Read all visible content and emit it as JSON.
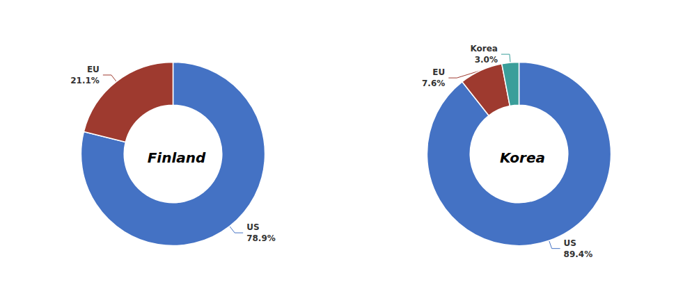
{
  "chart_data": [
    {
      "type": "pie",
      "title": "Finland",
      "categories": [
        "US",
        "EU"
      ],
      "values": [
        78.9,
        21.1
      ],
      "value_labels": [
        "78.9%",
        "21.1%"
      ],
      "colors": [
        "#4472C4",
        "#9E3A2F"
      ],
      "data_labels": true
    },
    {
      "type": "pie",
      "title": "Korea",
      "categories": [
        "US",
        "EU",
        "Korea"
      ],
      "values": [
        89.4,
        7.6,
        3.0
      ],
      "value_labels": [
        "89.4%",
        "7.6%",
        "3.0%"
      ],
      "colors": [
        "#4472C4",
        "#9E3A2F",
        "#3A9E9A"
      ],
      "data_labels": true
    }
  ]
}
